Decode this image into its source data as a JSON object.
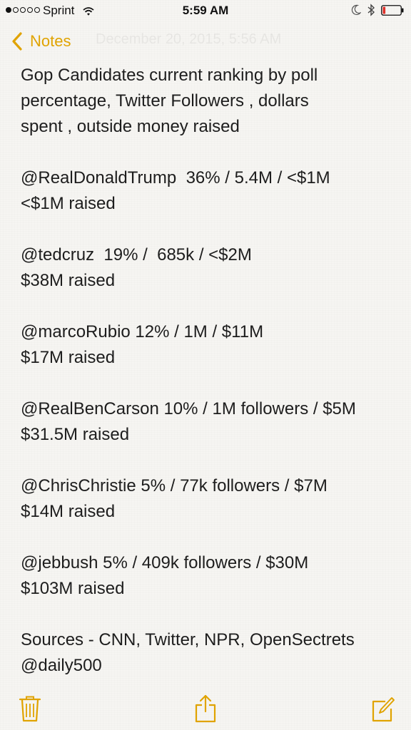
{
  "status_bar": {
    "carrier": "Sprint",
    "time": "5:59 AM",
    "signal_bars_filled": 1,
    "signal_bars_total": 5,
    "battery_level": 0.15,
    "battery_color": "#e0312b",
    "icons": [
      "wifi-icon",
      "moon-icon",
      "bluetooth-icon",
      "battery-icon"
    ]
  },
  "nav": {
    "back_label": "Notes",
    "date_text": "December 20, 2015, 5:56 AM",
    "accent_color": "#e0a300"
  },
  "note": {
    "lines": [
      "Gop Candidates current ranking by poll",
      "percentage, Twitter Followers , dollars",
      "spent , outside money raised",
      "",
      "@RealDonaldTrump  36% / 5.4M / <$1M",
      "<$1M raised",
      "",
      "@tedcruz  19% /  685k / <$2M",
      "$38M raised",
      "",
      "@marcoRubio 12% / 1M / $11M",
      "$17M raised",
      "",
      "@RealBenCarson 10% / 1M followers / $5M",
      "$31.5M raised",
      "",
      "@ChrisChristie 5% / 77k followers / $7M",
      "$14M raised",
      "",
      "@jebbush 5% / 409k followers / $30M",
      "$103M raised",
      "",
      "Sources - CNN, Twitter, NPR, OpenSectrets",
      "@daily500"
    ]
  },
  "toolbar": {
    "icons": [
      "trash-icon",
      "share-icon",
      "compose-icon"
    ]
  }
}
